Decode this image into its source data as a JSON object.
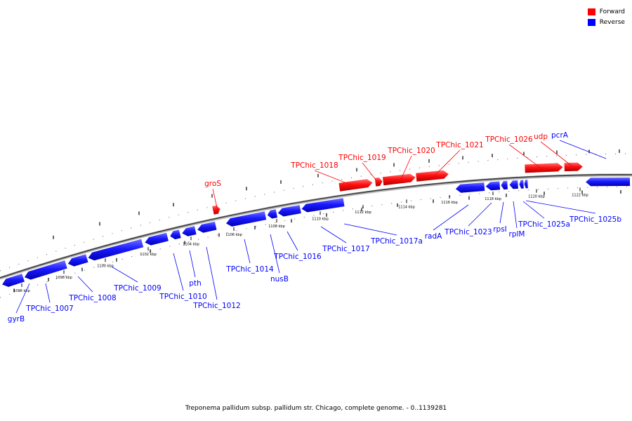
{
  "legend": {
    "forward_label": "Forward",
    "reverse_label": "Reverse",
    "forward_color": "#ff0000",
    "reverse_color": "#0000ff"
  },
  "caption": "Treponema pallidum subsp. pallidum str. Chicago, complete genome. - 0..1139281",
  "coordinate_labels": [
    "1096 kbp",
    "1098 kbp",
    "1100 kbp",
    "1102 kbp",
    "1104 kbp",
    "1106 kbp",
    "1108 kbp",
    "1110 kbp",
    "1112 kbp",
    "1114 kbp",
    "1116 kbp",
    "1118 kbp",
    "1120 kbp",
    "1122 kbp"
  ],
  "genes": [
    {
      "name": "gyrB",
      "strand": "reverse"
    },
    {
      "name": "TPChic_1007",
      "strand": "reverse"
    },
    {
      "name": "TPChic_1008",
      "strand": "reverse"
    },
    {
      "name": "TPChic_1009",
      "strand": "reverse"
    },
    {
      "name": "TPChic_1010",
      "strand": "reverse"
    },
    {
      "name": "pth",
      "strand": "reverse"
    },
    {
      "name": "TPChic_1012",
      "strand": "reverse"
    },
    {
      "name": "TPChic_1014",
      "strand": "reverse"
    },
    {
      "name": "nusB",
      "strand": "reverse"
    },
    {
      "name": "TPChic_1016",
      "strand": "reverse"
    },
    {
      "name": "TPChic_1017",
      "strand": "reverse"
    },
    {
      "name": "TPChic_1017a",
      "strand": "reverse"
    },
    {
      "name": "radA",
      "strand": "reverse"
    },
    {
      "name": "TPChic_1023",
      "strand": "reverse"
    },
    {
      "name": "rpsI",
      "strand": "reverse"
    },
    {
      "name": "rplM",
      "strand": "reverse"
    },
    {
      "name": "TPChic_1025a",
      "strand": "reverse"
    },
    {
      "name": "TPChic_1025b",
      "strand": "reverse"
    },
    {
      "name": "groS",
      "strand": "forward"
    },
    {
      "name": "TPChic_1018",
      "strand": "forward"
    },
    {
      "name": "TPChic_1019",
      "strand": "forward"
    },
    {
      "name": "TPChic_1020",
      "strand": "forward"
    },
    {
      "name": "TPChic_1021",
      "strand": "forward"
    },
    {
      "name": "TPChic_1026",
      "strand": "forward"
    },
    {
      "name": "udp",
      "strand": "forward"
    },
    {
      "name": "pcrA",
      "strand": "reverse"
    }
  ]
}
